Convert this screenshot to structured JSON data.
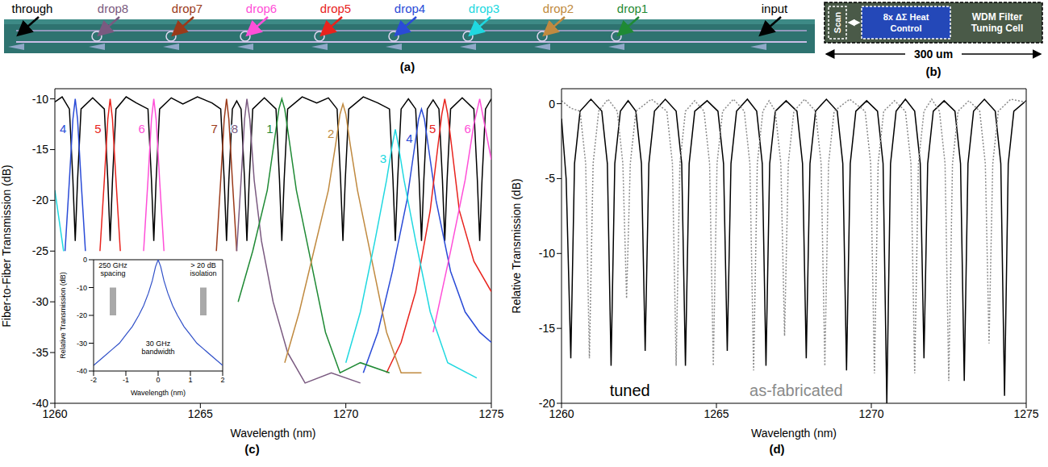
{
  "panel_a": {
    "label": "(a)",
    "ports": [
      {
        "text": "through",
        "color": "#000000"
      },
      {
        "text": "drop8",
        "color": "#7a5a80"
      },
      {
        "text": "drop7",
        "color": "#9a3a1a"
      },
      {
        "text": "drop6",
        "color": "#ff4fd8"
      },
      {
        "text": "drop5",
        "color": "#e8231d"
      },
      {
        "text": "drop4",
        "color": "#2a4bd7"
      },
      {
        "text": "drop3",
        "color": "#20d8e0"
      },
      {
        "text": "drop2",
        "color": "#c08a40"
      },
      {
        "text": "drop1",
        "color": "#1f8a35"
      },
      {
        "text": "input",
        "color": "#000000"
      }
    ]
  },
  "panel_b": {
    "label": "(b)",
    "blocks": [
      "Scan",
      "8x ΔΣ Heat Control",
      "WDM Filter Tuning Cell"
    ],
    "scale_bar": "300 um"
  },
  "chart_data": [
    {
      "label": "(c)",
      "type": "line",
      "x_label": "Wavelength (nm)",
      "y_label": "Fiber-to-Fiber Transmission (dB)",
      "xlim": [
        1260,
        1275
      ],
      "xticks": [
        1260,
        1265,
        1270,
        1275
      ],
      "ylim": [
        -40,
        -9
      ],
      "yticks": [
        -40,
        -35,
        -30,
        -25,
        -20,
        -15,
        -10
      ],
      "grid": false,
      "series": [
        {
          "color": "#000000",
          "x": [
            1260.0,
            1260.25,
            1260.5,
            1260.62,
            1260.7,
            1260.78,
            1260.9,
            1261.3,
            1261.7,
            1261.82,
            1261.9,
            1261.98,
            1262.1,
            1262.45,
            1262.8,
            1263.2,
            1263.32,
            1263.4,
            1263.48,
            1263.6,
            1264.0,
            1264.4,
            1264.9,
            1265.4,
            1265.7,
            1265.82,
            1265.9,
            1265.98,
            1266.1,
            1266.25,
            1266.4,
            1266.52,
            1266.6,
            1266.68,
            1266.8,
            1267.2,
            1267.6,
            1267.72,
            1267.8,
            1267.88,
            1268.0,
            1268.5,
            1269.0,
            1269.4,
            1269.7,
            1269.82,
            1269.9,
            1269.98,
            1270.1,
            1270.6,
            1271.1,
            1271.5,
            1271.62,
            1271.7,
            1271.78,
            1271.9,
            1272.15,
            1272.4,
            1272.52,
            1272.6,
            1272.68,
            1272.8,
            1273.0,
            1273.2,
            1273.32,
            1273.4,
            1273.48,
            1273.6,
            1274.0,
            1274.4,
            1274.52,
            1274.6,
            1274.68,
            1274.8,
            1275.0
          ],
          "values": [
            -10.3,
            -9.8,
            -11,
            -18,
            -24,
            -18,
            -11,
            -9.9,
            -11,
            -18,
            -24,
            -18,
            -11,
            -9.8,
            -10.4,
            -11,
            -18,
            -24,
            -18,
            -11,
            -9.9,
            -10.5,
            -9.8,
            -10.4,
            -11,
            -18,
            -24,
            -18,
            -11,
            -10.2,
            -11,
            -18,
            -24,
            -18,
            -11,
            -9.9,
            -11,
            -18,
            -24,
            -18,
            -11,
            -9.8,
            -10.4,
            -9.9,
            -11,
            -18,
            -24,
            -18,
            -11,
            -9.8,
            -10.4,
            -11,
            -18,
            -24,
            -18,
            -11,
            -10,
            -11,
            -18,
            -24,
            -18,
            -11,
            -10.1,
            -11,
            -18,
            -24,
            -18,
            -11,
            -9.9,
            -11,
            -18,
            -24,
            -18,
            -11,
            -10
          ]
        },
        {
          "name": "4",
          "color": "#2a4bd7",
          "x": [
            1260.35,
            1260.5,
            1260.62,
            1260.7,
            1260.78,
            1260.9,
            1261.05,
            1266.0,
            1270.6,
            1271.1,
            1271.6,
            1272.1,
            1272.35,
            1272.5,
            1272.6,
            1272.7,
            1272.85,
            1273.1,
            1273.6,
            1274.1,
            1274.6,
            1275.0
          ],
          "values": [
            -25,
            -18,
            -12,
            -10,
            -12,
            -18,
            -25,
            null,
            -37,
            -33,
            -27,
            -20,
            -15,
            -12,
            -11,
            -12,
            -15,
            -20,
            -27,
            -31,
            -33,
            -34
          ]
        },
        {
          "name": "5",
          "color": "#e8231d",
          "x": [
            1261.55,
            1261.7,
            1261.82,
            1261.9,
            1261.98,
            1262.1,
            1262.25,
            1266.0,
            1271.4,
            1271.9,
            1272.4,
            1272.9,
            1273.15,
            1273.3,
            1273.4,
            1273.5,
            1273.65,
            1273.9,
            1274.4,
            1275.0
          ],
          "values": [
            -25,
            -18,
            -12,
            -10,
            -12,
            -18,
            -25,
            null,
            -37,
            -34,
            -29,
            -21,
            -15,
            -11.5,
            -10,
            -11.5,
            -15,
            -21,
            -26,
            -29
          ]
        },
        {
          "name": "6",
          "color": "#ff4fd8",
          "x": [
            1263.05,
            1263.2,
            1263.32,
            1263.4,
            1263.48,
            1263.6,
            1263.75,
            1268.0,
            1273.0,
            1273.6,
            1274.1,
            1274.4,
            1274.6,
            1274.8,
            1275.0
          ],
          "values": [
            -25,
            -18,
            -12,
            -10,
            -12,
            -18,
            -25,
            null,
            -33,
            -25,
            -18,
            -12.5,
            -10,
            -13,
            -16
          ]
        },
        {
          "name": "7",
          "color": "#9a3a1a",
          "x": [
            1265.55,
            1265.7,
            1265.82,
            1265.9,
            1265.98,
            1266.1,
            1266.25
          ],
          "values": [
            -25,
            -18,
            -12,
            -10,
            -12,
            -18,
            -25
          ]
        },
        {
          "name": "8",
          "color": "#7a5a80",
          "x": [
            1266.25,
            1266.4,
            1266.52,
            1266.6,
            1266.7,
            1266.85,
            1267.1,
            1267.5,
            1268.0,
            1268.6,
            1269.5,
            1270.5
          ],
          "values": [
            -25,
            -18,
            -12,
            -10,
            -12,
            -18,
            -24,
            -30,
            -35,
            -38,
            -37,
            -38
          ]
        },
        {
          "name": "1",
          "color": "#1f8a35",
          "x": [
            1266.3,
            1266.8,
            1267.3,
            1267.55,
            1267.7,
            1267.8,
            1267.9,
            1268.05,
            1268.3,
            1268.8,
            1269.3,
            1269.8,
            1270.5,
            1271.5
          ],
          "values": [
            -30,
            -25,
            -19,
            -14,
            -11,
            -10,
            -11,
            -14,
            -19,
            -26,
            -33,
            -37,
            -36,
            -37
          ]
        },
        {
          "name": "2",
          "color": "#c08a40",
          "x": [
            1267.9,
            1268.4,
            1268.9,
            1269.4,
            1269.65,
            1269.8,
            1269.9,
            1270.0,
            1270.15,
            1270.4,
            1270.9,
            1271.4,
            1271.9,
            1272.6
          ],
          "values": [
            -36,
            -31,
            -25,
            -19,
            -14.5,
            -11.5,
            -10.5,
            -11.5,
            -14.5,
            -19,
            -26,
            -33,
            -37,
            -37
          ]
        },
        {
          "name": "3",
          "color": "#20d8e0",
          "x": [
            1260.0,
            1260.15,
            1260.3,
            1265.0,
            1270.0,
            1270.5,
            1271.0,
            1271.4,
            1271.6,
            1271.7,
            1271.8,
            1272.0,
            1272.4,
            1272.9,
            1273.5,
            1274.5
          ],
          "values": [
            -19,
            -22,
            -25,
            null,
            -36,
            -31,
            -24,
            -18,
            -14.5,
            -13,
            -14.5,
            -18,
            -24,
            -31,
            -36,
            -37.5
          ]
        }
      ],
      "inset": {
        "type": "line",
        "x_label": "Wavelength (nm)",
        "y_label": "Relative Transmission (dB)",
        "xlim": [
          -2,
          2
        ],
        "xticks": [
          -2,
          -1,
          0,
          1,
          2
        ],
        "ylim": [
          -40,
          0
        ],
        "yticks": [
          -40,
          -30,
          -20,
          -10,
          0
        ],
        "series": [
          {
            "color": "#3050c8",
            "x": [
              -2,
              -1.7,
              -1.4,
              -1.2,
              -1,
              -0.8,
              -0.6,
              -0.45,
              -0.3,
              -0.18,
              -0.08,
              0,
              0.08,
              0.18,
              0.3,
              0.45,
              0.6,
              0.8,
              1,
              1.2,
              1.4,
              1.7,
              2
            ],
            "values": [
              -38,
              -35,
              -32,
              -30,
              -27,
              -24,
              -20,
              -16.5,
              -12,
              -7.5,
              -2.5,
              0,
              -2.5,
              -7.5,
              -12,
              -16.5,
              -20,
              -24,
              -27,
              -30,
              -32,
              -35,
              -38
            ]
          }
        ],
        "bands": [
          {
            "x": [
              -1.5,
              -1.3
            ],
            "y": [
              -20,
              -10
            ]
          },
          {
            "x": [
              1.3,
              1.5
            ],
            "y": [
              -20,
              -10
            ]
          }
        ],
        "annotations": [
          "250 GHz spacing",
          "> 20 dB isolation",
          "30 GHz bandwidth"
        ]
      }
    },
    {
      "label": "(d)",
      "type": "line",
      "x_label": "Wavelength (nm)",
      "y_label": "Relative Transmission (dB)",
      "xlim": [
        1260,
        1275
      ],
      "xticks": [
        1260,
        1265,
        1270,
        1275
      ],
      "ylim": [
        -20,
        1
      ],
      "yticks": [
        -20,
        -15,
        -10,
        -5,
        0
      ],
      "grid": false,
      "series": [
        {
          "name": "tuned",
          "color": "#000000",
          "line_style": "solid",
          "x": [
            1260.0,
            1260.15,
            1260.3,
            1260.42,
            1260.6,
            1260.95,
            1261.3,
            1261.48,
            1261.6,
            1261.72,
            1261.9,
            1262.15,
            1262.4,
            1262.58,
            1262.7,
            1262.82,
            1263.0,
            1263.35,
            1263.7,
            1263.88,
            1264.0,
            1264.12,
            1264.3,
            1264.7,
            1265.05,
            1265.23,
            1265.35,
            1265.47,
            1265.65,
            1266.0,
            1266.3,
            1266.48,
            1266.6,
            1266.72,
            1266.9,
            1267.25,
            1267.6,
            1267.78,
            1267.9,
            1268.02,
            1268.2,
            1268.55,
            1268.9,
            1269.08,
            1269.2,
            1269.32,
            1269.5,
            1269.85,
            1270.2,
            1270.38,
            1270.5,
            1270.62,
            1270.8,
            1271.1,
            1271.4,
            1271.58,
            1271.7,
            1271.82,
            1272.0,
            1272.35,
            1272.7,
            1272.88,
            1273.0,
            1273.12,
            1273.3,
            1273.65,
            1274.0,
            1274.18,
            1274.3,
            1274.42,
            1274.6,
            1275.0
          ],
          "values": [
            -1,
            -5,
            -17,
            -4,
            -0.5,
            0.3,
            -0.5,
            -4,
            -17.5,
            -4,
            -0.5,
            0.2,
            -0.5,
            -4,
            -16.5,
            -4,
            -0.5,
            0.3,
            -0.5,
            -4,
            -17.5,
            -4,
            -0.5,
            0.2,
            -0.5,
            -4,
            -16.5,
            -4,
            -0.5,
            0.3,
            -0.5,
            -4,
            -17.5,
            -4,
            -0.5,
            0.2,
            -0.5,
            -4,
            -17,
            -4,
            -0.5,
            0.3,
            -0.5,
            -4,
            -17.8,
            -4,
            -0.5,
            0.2,
            -0.5,
            -4,
            -20,
            -4,
            -0.5,
            0.3,
            -0.5,
            -4,
            -17,
            -4,
            -0.5,
            0.2,
            -0.5,
            -4,
            -18.5,
            -4,
            -0.5,
            0.3,
            -0.5,
            -4,
            -19.5,
            -4,
            -0.5,
            0.2
          ]
        },
        {
          "name": "as-fabricated",
          "color": "#8a8a8a",
          "line_style": "dotted",
          "x": [
            1260.0,
            1260.3,
            1260.6,
            1260.78,
            1260.9,
            1261.02,
            1261.2,
            1261.5,
            1261.8,
            1261.98,
            1262.1,
            1262.22,
            1262.4,
            1262.9,
            1263.4,
            1263.58,
            1263.7,
            1263.82,
            1264.0,
            1264.3,
            1264.6,
            1264.78,
            1264.9,
            1265.02,
            1265.2,
            1265.55,
            1265.9,
            1266.08,
            1266.2,
            1266.32,
            1266.5,
            1266.7,
            1266.9,
            1267.08,
            1267.2,
            1267.32,
            1267.5,
            1267.85,
            1268.2,
            1268.38,
            1268.5,
            1268.62,
            1268.8,
            1269.3,
            1269.8,
            1269.98,
            1270.1,
            1270.22,
            1270.4,
            1270.75,
            1271.1,
            1271.28,
            1271.4,
            1271.52,
            1271.7,
            1271.95,
            1272.2,
            1272.38,
            1272.5,
            1272.62,
            1272.8,
            1273.15,
            1273.5,
            1273.68,
            1273.8,
            1273.92,
            1274.1,
            1274.5,
            1275.0
          ],
          "values": [
            0.2,
            -0.3,
            -0.5,
            -4,
            -17,
            -4,
            -0.5,
            0.3,
            -0.5,
            -4,
            -13,
            -4,
            -0.5,
            0.3,
            -0.5,
            -4,
            -17.5,
            -4,
            -0.5,
            0.2,
            -0.5,
            -4,
            -17.5,
            -4,
            -0.5,
            0.3,
            -0.5,
            -4,
            -17.8,
            -4,
            -0.5,
            0.2,
            -0.5,
            -4,
            -15.5,
            -4,
            -0.5,
            0.3,
            -0.5,
            -4,
            -17.5,
            -4,
            -0.5,
            0.3,
            -0.5,
            -4,
            -18,
            -4,
            -0.5,
            0.2,
            -0.5,
            -4,
            -18,
            -4,
            -0.5,
            0.3,
            -0.5,
            -4,
            -18.5,
            -4,
            -0.5,
            0.2,
            -0.5,
            -4,
            -16,
            -4,
            -0.5,
            0.3,
            0.1
          ]
        }
      ]
    }
  ]
}
